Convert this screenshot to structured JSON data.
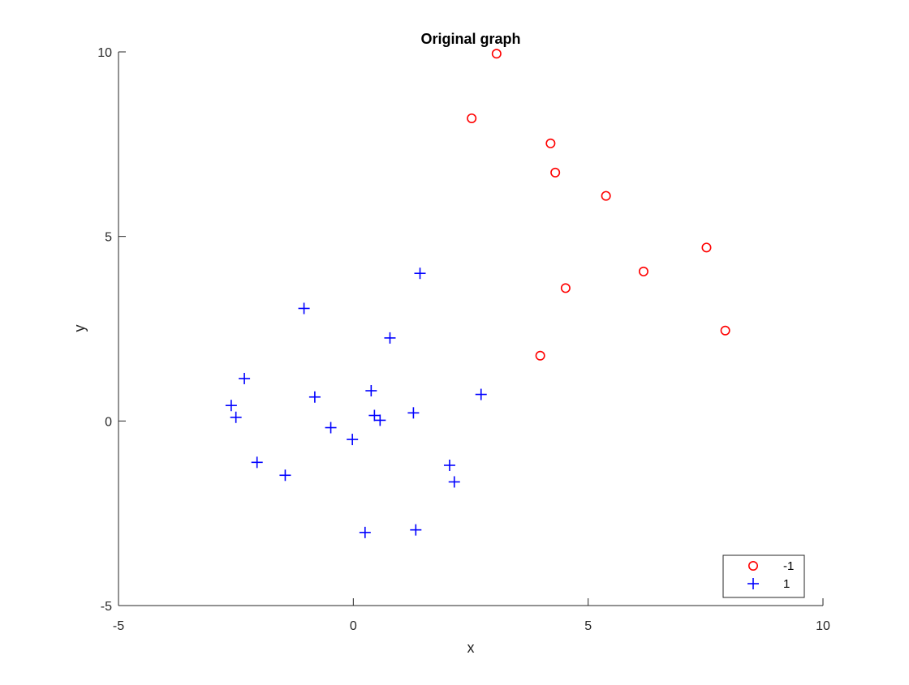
{
  "chart_data": {
    "type": "scatter",
    "title": "Original graph",
    "xlabel": "x",
    "ylabel": "y",
    "xlim": [
      -5,
      10
    ],
    "ylim": [
      -5,
      10
    ],
    "xticks": [
      -5,
      0,
      5,
      10
    ],
    "yticks": [
      -5,
      0,
      5,
      10
    ],
    "xtick_labels": [
      "-5",
      "0",
      "5",
      "10"
    ],
    "ytick_labels": [
      "-5",
      "0",
      "5",
      "10"
    ],
    "grid": false,
    "legend_placement": "bottom-right",
    "series": [
      {
        "name": "-1",
        "marker": "circle",
        "color": "#ff0000",
        "points": [
          [
            3.05,
            9.95
          ],
          [
            2.52,
            8.2
          ],
          [
            4.2,
            7.52
          ],
          [
            4.3,
            6.73
          ],
          [
            5.38,
            6.1
          ],
          [
            7.52,
            4.7
          ],
          [
            6.18,
            4.05
          ],
          [
            4.52,
            3.6
          ],
          [
            7.92,
            2.45
          ],
          [
            3.98,
            1.77
          ]
        ]
      },
      {
        "name": "1",
        "marker": "plus",
        "color": "#0000ff",
        "points": [
          [
            1.42,
            4.0
          ],
          [
            -1.05,
            3.05
          ],
          [
            0.78,
            2.25
          ],
          [
            -2.32,
            1.15
          ],
          [
            -2.6,
            0.42
          ],
          [
            -2.5,
            0.1
          ],
          [
            -0.82,
            0.65
          ],
          [
            0.38,
            0.82
          ],
          [
            0.45,
            0.15
          ],
          [
            0.57,
            0.02
          ],
          [
            -0.48,
            -0.18
          ],
          [
            1.28,
            0.22
          ],
          [
            2.72,
            0.72
          ],
          [
            -0.02,
            -0.5
          ],
          [
            -2.05,
            -1.12
          ],
          [
            -1.45,
            -1.47
          ],
          [
            2.05,
            -1.2
          ],
          [
            2.15,
            -1.65
          ],
          [
            0.25,
            -3.02
          ],
          [
            1.33,
            -2.95
          ]
        ]
      }
    ]
  }
}
